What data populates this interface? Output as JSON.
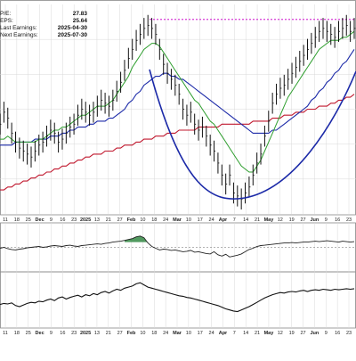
{
  "stats": [
    {
      "label": "P/E:",
      "value": "27.83"
    },
    {
      "label": "EPS:",
      "value": "25.64"
    },
    {
      "label": "Last Earnings:",
      "value": "2025-04-30"
    },
    {
      "label": "Next Earnings:",
      "value": "2025-07-30"
    }
  ],
  "colors": {
    "price": "#111111",
    "ma_short": "#2e9e2e",
    "ma_mid": "#1c2aa8",
    "ma_long": "#c0182e",
    "resistance": "#d63ad6",
    "cup": "#1c2aa8",
    "grid": "#d9d9d9",
    "indicator_fill": "#3f8f4f"
  },
  "chart_data": {
    "type": "line",
    "x_ticks": [
      "11",
      "18",
      "25",
      "Dec",
      "9",
      "16",
      "23",
      "2025",
      "13",
      "21",
      "27",
      "Feb",
      "10",
      "18",
      "24",
      "Mar",
      "10",
      "17",
      "24",
      "Apr",
      "7",
      "14",
      "21",
      "May",
      "12",
      "19",
      "27",
      "Jun",
      "9",
      "16",
      "23"
    ],
    "main_panel": {
      "price": [
        30,
        34,
        32,
        27,
        24,
        22,
        21,
        20,
        19,
        21,
        23,
        24,
        26,
        28,
        27,
        24,
        25,
        27,
        29,
        30,
        33,
        35,
        34,
        33,
        34,
        36,
        38,
        37,
        36,
        38,
        41,
        44,
        48,
        52,
        55,
        58,
        60,
        62,
        63,
        62,
        60,
        55,
        50,
        47,
        45,
        43,
        40,
        35,
        33,
        34,
        30,
        28,
        29,
        26,
        23,
        21,
        17,
        13,
        10,
        13,
        7,
        6,
        5,
        7,
        9,
        13,
        17,
        20,
        26,
        31,
        37,
        40,
        42,
        43,
        45,
        47,
        49,
        51,
        53,
        55,
        57,
        59,
        61,
        62,
        61,
        60,
        59,
        61,
        62,
        63,
        61,
        62
      ],
      "ma_short": [
        25,
        25,
        26,
        25,
        24,
        24,
        24,
        24,
        24,
        24,
        25,
        25,
        26,
        27,
        28,
        28,
        29,
        29,
        30,
        31,
        32,
        33,
        33,
        34,
        35,
        36,
        36,
        36,
        37,
        38,
        40,
        42,
        44,
        46,
        49,
        51,
        53,
        55,
        56,
        57,
        57,
        56,
        54,
        52,
        50,
        48,
        46,
        44,
        42,
        40,
        38,
        37,
        35,
        33,
        31,
        30,
        28,
        26,
        24,
        22,
        20,
        18,
        16,
        15,
        14,
        14,
        16,
        18,
        21,
        24,
        27,
        30,
        33,
        36,
        39,
        41,
        43,
        45,
        47,
        49,
        51,
        53,
        55,
        56,
        57,
        58,
        58,
        58,
        59,
        59,
        60,
        61
      ],
      "ma_mid": [
        23,
        23,
        23,
        23,
        24,
        24,
        24,
        24,
        24,
        25,
        25,
        25,
        25,
        26,
        26,
        26,
        27,
        27,
        28,
        28,
        29,
        29,
        29,
        30,
        30,
        31,
        31,
        31,
        32,
        32,
        33,
        34,
        35,
        37,
        38,
        40,
        41,
        43,
        44,
        45,
        46,
        46,
        47,
        47,
        46,
        46,
        45,
        45,
        44,
        43,
        42,
        41,
        40,
        39,
        38,
        37,
        36,
        35,
        34,
        33,
        32,
        31,
        30,
        29,
        28,
        27,
        27,
        27,
        27,
        27,
        28,
        28,
        29,
        30,
        31,
        32,
        33,
        34,
        35,
        36,
        38,
        39,
        41,
        42,
        44,
        45,
        47,
        48,
        50,
        51,
        53,
        55
      ],
      "ma_long": [
        8,
        8,
        9,
        9,
        10,
        10,
        11,
        11,
        12,
        12,
        13,
        13,
        14,
        14,
        15,
        15,
        16,
        16,
        17,
        17,
        18,
        18,
        19,
        19,
        20,
        20,
        20,
        21,
        21,
        21,
        22,
        22,
        23,
        23,
        23,
        24,
        24,
        25,
        25,
        25,
        26,
        26,
        26,
        27,
        27,
        27,
        28,
        28,
        28,
        28,
        28,
        29,
        29,
        29,
        29,
        29,
        29,
        30,
        30,
        30,
        30,
        30,
        30,
        30,
        30,
        31,
        31,
        31,
        31,
        31,
        32,
        32,
        32,
        33,
        33,
        33,
        34,
        34,
        34,
        35,
        35,
        35,
        36,
        36,
        36,
        37,
        37,
        38,
        38,
        39,
        39,
        40
      ],
      "ylim": [
        0,
        70
      ],
      "resistance_level": 65,
      "cup": "rounded bottom spanning Feb 18 to late Jun, low near Apr 14"
    },
    "indicator_panel": {
      "values": [
        48,
        50,
        47,
        45,
        44,
        46,
        47,
        49,
        50,
        51,
        52,
        50,
        51,
        53,
        54,
        53,
        52,
        54,
        55,
        53,
        52,
        54,
        55,
        56,
        57,
        58,
        57,
        59,
        60,
        62,
        63,
        64,
        66,
        68,
        70,
        74,
        76,
        72,
        60,
        52,
        48,
        44,
        46,
        45,
        43,
        44,
        42,
        40,
        41,
        43,
        39,
        40,
        38,
        36,
        35,
        40,
        33,
        30,
        34,
        28,
        30,
        32,
        35,
        40,
        45,
        48,
        52,
        54,
        55,
        56,
        57,
        58,
        59,
        60,
        60,
        61,
        60,
        61,
        62,
        62,
        63,
        64,
        63,
        64,
        65,
        64,
        63,
        62,
        64,
        63,
        62,
        63
      ],
      "reference_level": 50,
      "highlight_range": [
        32,
        38
      ]
    },
    "lower_panel": {
      "values": [
        40,
        42,
        41,
        43,
        38,
        36,
        39,
        42,
        44,
        43,
        46,
        45,
        48,
        50,
        47,
        52,
        54,
        50,
        53,
        55,
        57,
        54,
        58,
        56,
        60,
        58,
        62,
        64,
        61,
        65,
        68,
        66,
        70,
        72,
        74,
        78,
        80,
        76,
        72,
        70,
        68,
        66,
        64,
        62,
        60,
        58,
        56,
        55,
        53,
        52,
        50,
        48,
        46,
        44,
        42,
        40,
        38,
        35,
        32,
        30,
        28,
        27,
        30,
        33,
        36,
        40,
        44,
        48,
        52,
        55,
        58,
        60,
        62,
        61,
        63,
        64,
        63,
        65,
        66,
        64,
        66,
        67,
        66,
        68,
        67,
        66,
        68,
        67,
        68,
        69,
        68,
        69
      ]
    }
  }
}
